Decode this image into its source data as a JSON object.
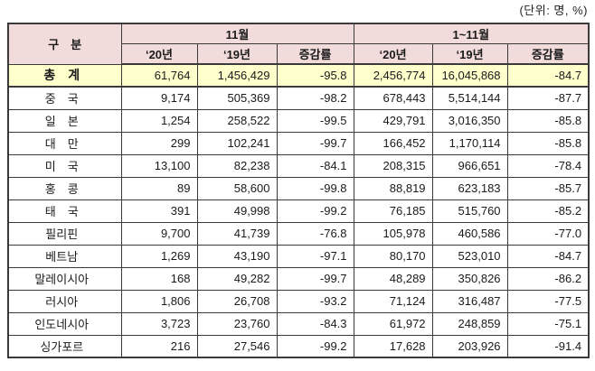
{
  "unit_note": "(단위: 명, %)",
  "table": {
    "col_group_label": "구　분",
    "groups": [
      {
        "label": "11월"
      },
      {
        "label": "1~11월"
      }
    ],
    "sub_headers": [
      "‘20년",
      "‘19년",
      "증감률",
      "‘20년",
      "‘19년",
      "증감률"
    ],
    "total_row": {
      "label": "총　계",
      "values": [
        "61,764",
        "1,456,429",
        "-95.8",
        "2,456,774",
        "16,045,868",
        "-84.7"
      ]
    },
    "rows": [
      {
        "label": "중　국",
        "values": [
          "9,174",
          "505,369",
          "-98.2",
          "678,443",
          "5,514,144",
          "-87.7"
        ]
      },
      {
        "label": "일　본",
        "values": [
          "1,254",
          "258,522",
          "-99.5",
          "429,791",
          "3,016,350",
          "-85.8"
        ]
      },
      {
        "label": "대　만",
        "values": [
          "299",
          "102,241",
          "-99.7",
          "166,452",
          "1,170,114",
          "-85.8"
        ]
      },
      {
        "label": "미　국",
        "values": [
          "13,100",
          "82,238",
          "-84.1",
          "208,315",
          "966,651",
          "-78.4"
        ]
      },
      {
        "label": "홍　콩",
        "values": [
          "89",
          "58,600",
          "-99.8",
          "88,819",
          "623,183",
          "-85.7"
        ]
      },
      {
        "label": "태　국",
        "values": [
          "391",
          "49,998",
          "-99.2",
          "76,185",
          "515,760",
          "-85.2"
        ]
      },
      {
        "label": "필리핀",
        "values": [
          "9,700",
          "41,739",
          "-76.8",
          "105,978",
          "460,586",
          "-77.0"
        ]
      },
      {
        "label": "베트남",
        "values": [
          "1,269",
          "43,190",
          "-97.1",
          "80,170",
          "523,010",
          "-84.7"
        ]
      },
      {
        "label": "말레이시아",
        "values": [
          "168",
          "49,282",
          "-99.7",
          "48,289",
          "350,826",
          "-86.2"
        ]
      },
      {
        "label": "러시아",
        "values": [
          "1,806",
          "26,708",
          "-93.2",
          "71,124",
          "316,487",
          "-77.5"
        ]
      },
      {
        "label": "인도네시아",
        "values": [
          "3,723",
          "23,760",
          "-84.3",
          "61,972",
          "248,859",
          "-75.1"
        ]
      },
      {
        "label": "싱가포르",
        "values": [
          "216",
          "27,546",
          "-99.2",
          "17,628",
          "203,926",
          "-91.4"
        ]
      }
    ],
    "colors": {
      "header_bg": "#F2DCDB",
      "total_bg": "#FFFFCC",
      "border": "#3A3A3A"
    }
  },
  "chart_data": {
    "type": "table",
    "title": "국가별 방한객 통계 (11월 / 1~11월, '20년 vs '19년)",
    "unit": "(단위: 명, %)",
    "columns": [
      "구분",
      "11월 '20년",
      "11월 '19년",
      "11월 증감률",
      "1~11월 '20년",
      "1~11월 '19년",
      "1~11월 증감률"
    ],
    "rows": [
      [
        "총계",
        61764,
        1456429,
        -95.8,
        2456774,
        16045868,
        -84.7
      ],
      [
        "중국",
        9174,
        505369,
        -98.2,
        678443,
        5514144,
        -87.7
      ],
      [
        "일본",
        1254,
        258522,
        -99.5,
        429791,
        3016350,
        -85.8
      ],
      [
        "대만",
        299,
        102241,
        -99.7,
        166452,
        1170114,
        -85.8
      ],
      [
        "미국",
        13100,
        82238,
        -84.1,
        208315,
        966651,
        -78.4
      ],
      [
        "홍콩",
        89,
        58600,
        -99.8,
        88819,
        623183,
        -85.7
      ],
      [
        "태국",
        391,
        49998,
        -99.2,
        76185,
        515760,
        -85.2
      ],
      [
        "필리핀",
        9700,
        41739,
        -76.8,
        105978,
        460586,
        -77.0
      ],
      [
        "베트남",
        1269,
        43190,
        -97.1,
        80170,
        523010,
        -84.7
      ],
      [
        "말레이시아",
        168,
        49282,
        -99.7,
        48289,
        350826,
        -86.2
      ],
      [
        "러시아",
        1806,
        26708,
        -93.2,
        71124,
        316487,
        -77.5
      ],
      [
        "인도네시아",
        3723,
        23760,
        -84.3,
        61972,
        248859,
        -75.1
      ],
      [
        "싱가포르",
        216,
        27546,
        -99.2,
        17628,
        203926,
        -91.4
      ]
    ]
  }
}
